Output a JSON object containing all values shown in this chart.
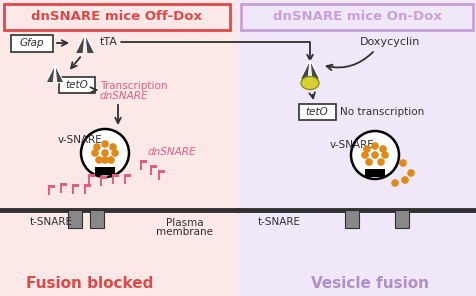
{
  "left_bg": "#fde8e8",
  "right_bg": "#f0e8f8",
  "left_box_edge": "#e04848",
  "right_box_edge": "#c8a0d8",
  "left_title": "dnSNARE mice Off-Dox",
  "right_title": "dnSNARE mice On-Dox",
  "left_footer": "Fusion blocked",
  "right_footer": "Vesicle fusion",
  "footer_left_color": "#e04848",
  "footer_right_color": "#b090c8",
  "pink_red": "#e06080",
  "dark_gray": "#303030",
  "mid_gray": "#888888",
  "orange": "#e08818",
  "dox_color": "#d8d030",
  "fig_width": 4.77,
  "fig_height": 2.96,
  "dpi": 100
}
